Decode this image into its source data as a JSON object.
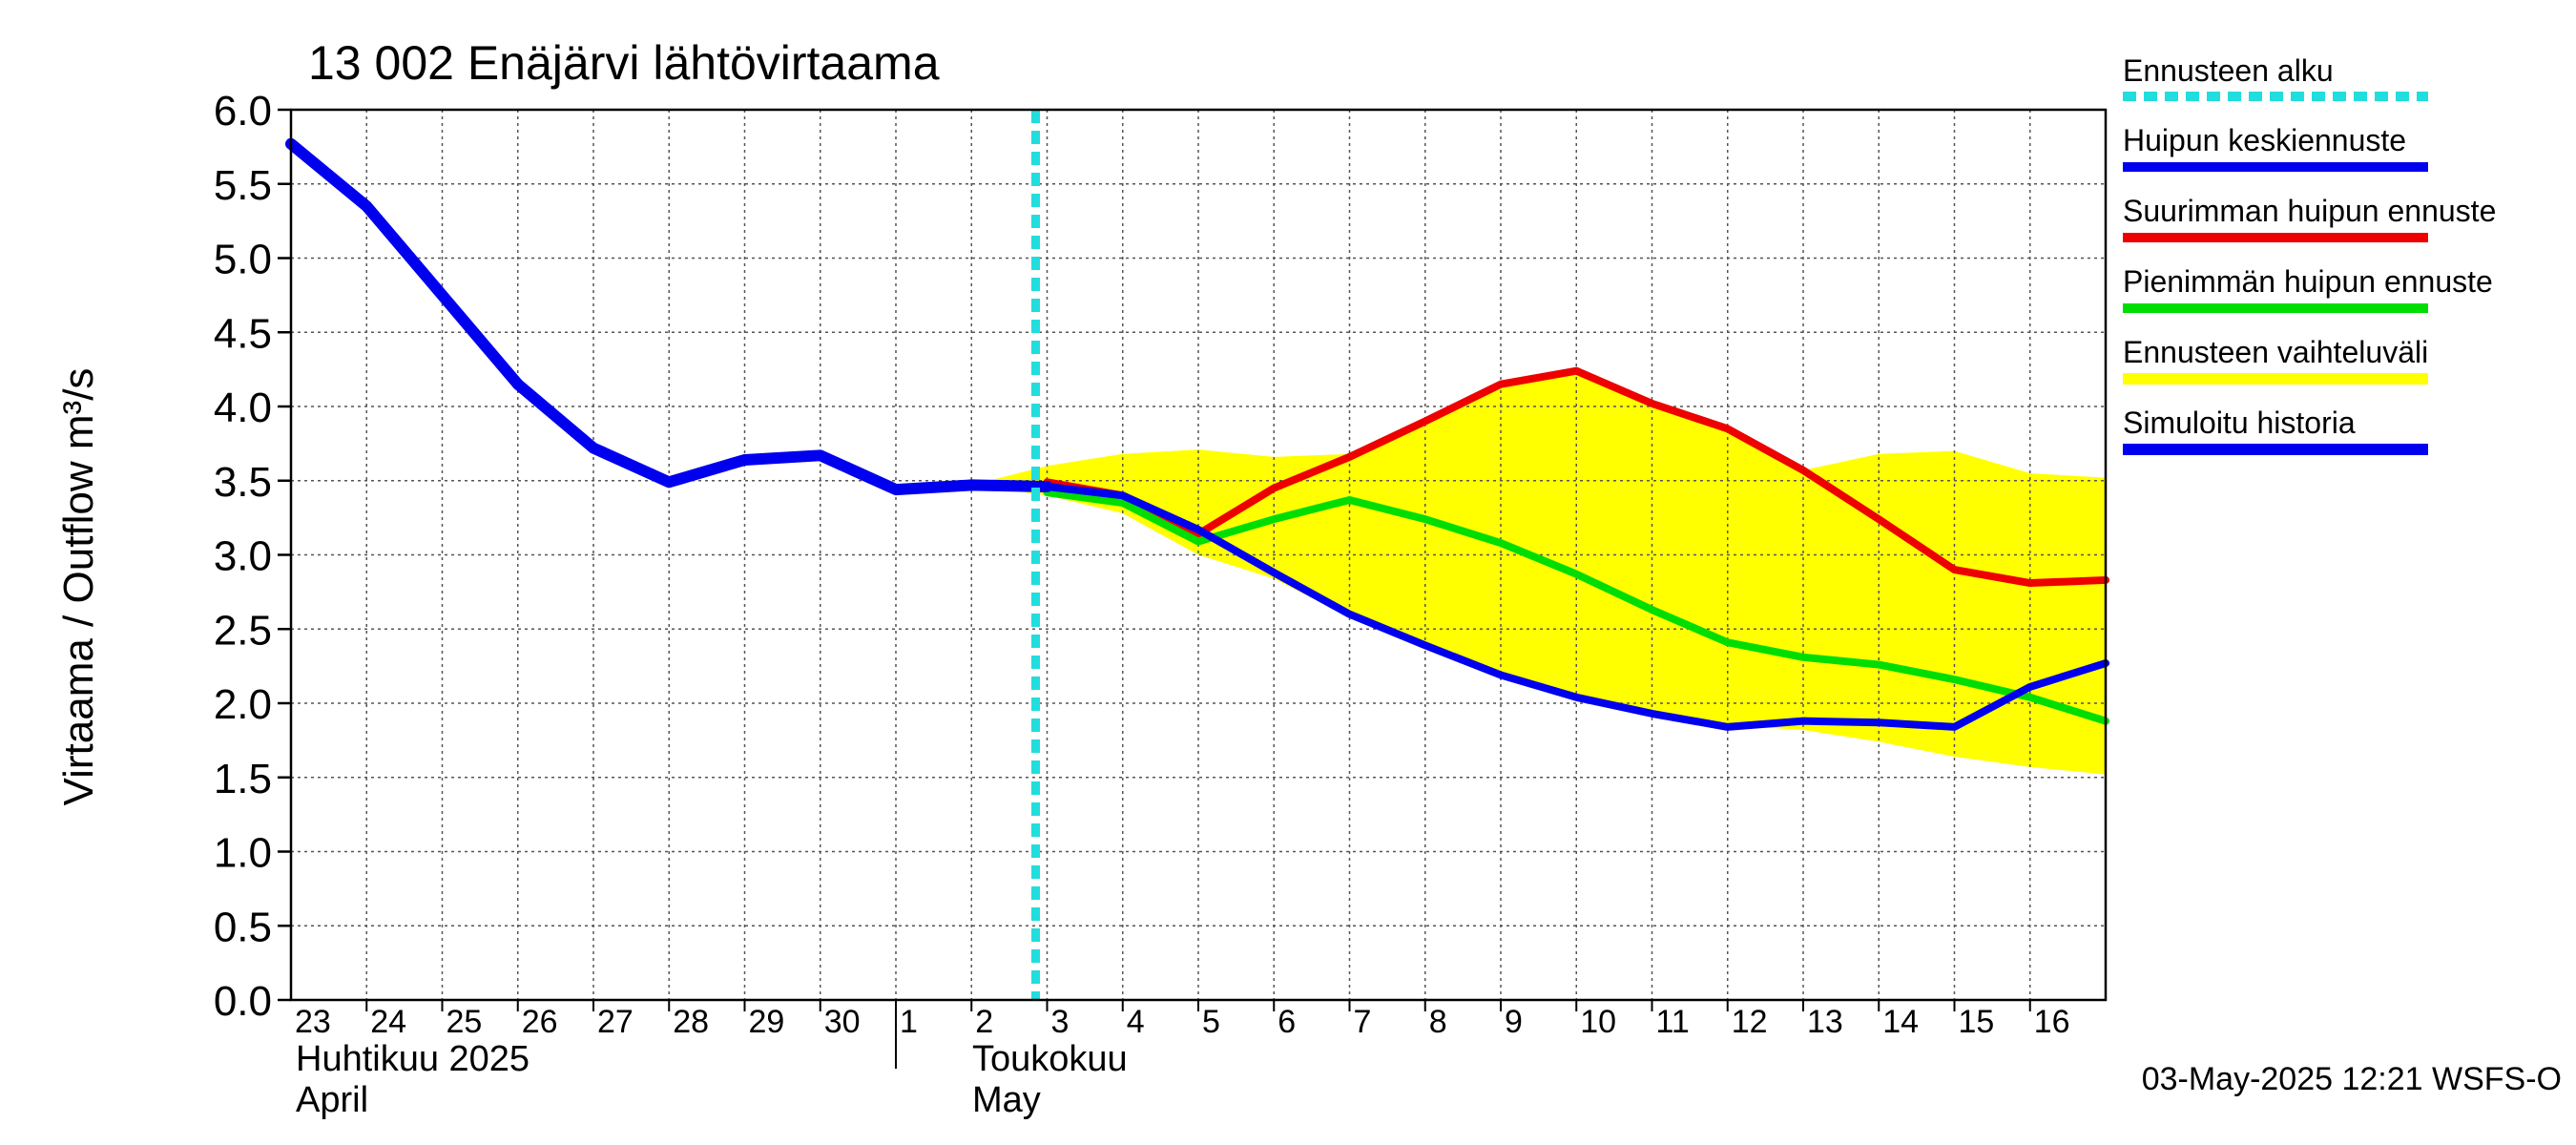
{
  "chart_data": {
    "type": "line",
    "title": "13 002 Enäjärvi lähtövirtaama",
    "ylabel": "Virtaama / Outflow    m³/s",
    "ylim": [
      0,
      6
    ],
    "yticks": [
      "0.0",
      "0.5",
      "1.0",
      "1.5",
      "2.0",
      "2.5",
      "3.0",
      "3.5",
      "4.0",
      "4.5",
      "5.0",
      "5.5",
      "6.0"
    ],
    "xlim": [
      "2025-04-23",
      "2025-05-17"
    ],
    "x_tick_labels": [
      "23",
      "24",
      "25",
      "26",
      "27",
      "28",
      "29",
      "30",
      "1",
      "2",
      "3",
      "4",
      "5",
      "6",
      "7",
      "8",
      "9",
      "10",
      "11",
      "12",
      "13",
      "14",
      "15",
      "16"
    ],
    "month_labels": {
      "april_fi": "Huhtikuu  2025",
      "april_en": "April",
      "may_fi": "Toukokuu",
      "may_en": "May"
    },
    "grid": true,
    "legend_position": "right",
    "legend": {
      "forecast_start": "Ennusteen alku",
      "mean_peak": "Huipun keskiennuste",
      "max_peak": "Suurimman huipun ennuste",
      "min_peak": "Pienimmän huipun ennuste",
      "range": "Ennusteen vaihteluväli",
      "history": "Simuloitu historia"
    },
    "colors": {
      "forecast_start": "#22dddd",
      "mean_peak": "#0000ee",
      "max_peak": "#ee0000",
      "min_peak": "#00dd00",
      "range": "#ffff00",
      "history": "#0000ee"
    },
    "forecast_start": "2025-05-03",
    "series": [
      {
        "name": "Simuloitu historia",
        "x": [
          "2025-04-23",
          "2025-04-24",
          "2025-04-25",
          "2025-04-26",
          "2025-04-27",
          "2025-04-28",
          "2025-04-29",
          "2025-04-30",
          "2025-05-01",
          "2025-05-02",
          "2025-05-03"
        ],
        "values": [
          5.77,
          5.35,
          4.75,
          4.15,
          3.72,
          3.49,
          3.64,
          3.67,
          3.44,
          3.47,
          3.46
        ]
      },
      {
        "name": "Huipun keskiennuste",
        "x": [
          "2025-05-03",
          "2025-05-04",
          "2025-05-05",
          "2025-05-06",
          "2025-05-07",
          "2025-05-08",
          "2025-05-09",
          "2025-05-10",
          "2025-05-11",
          "2025-05-12",
          "2025-05-13",
          "2025-05-14",
          "2025-05-15",
          "2025-05-16",
          "2025-05-17"
        ],
        "values": [
          3.46,
          3.4,
          3.17,
          2.88,
          2.6,
          2.39,
          2.19,
          2.04,
          1.93,
          1.84,
          1.88,
          1.87,
          1.84,
          2.11,
          2.27
        ]
      },
      {
        "name": "Suurimman huipun ennuste",
        "x": [
          "2025-05-03",
          "2025-05-04",
          "2025-05-05",
          "2025-05-06",
          "2025-05-07",
          "2025-05-08",
          "2025-05-09",
          "2025-05-10",
          "2025-05-11",
          "2025-05-12",
          "2025-05-13",
          "2025-05-14",
          "2025-05-15",
          "2025-05-16",
          "2025-05-17"
        ],
        "values": [
          3.49,
          3.4,
          3.14,
          3.45,
          3.66,
          3.9,
          4.15,
          4.24,
          4.02,
          3.85,
          3.57,
          3.24,
          2.9,
          2.81,
          2.83
        ]
      },
      {
        "name": "Pienimmän huipun ennuste",
        "x": [
          "2025-05-03",
          "2025-05-04",
          "2025-05-05",
          "2025-05-06",
          "2025-05-07",
          "2025-05-08",
          "2025-05-09",
          "2025-05-10",
          "2025-05-11",
          "2025-05-12",
          "2025-05-13",
          "2025-05-14",
          "2025-05-15",
          "2025-05-16",
          "2025-05-17"
        ],
        "values": [
          3.42,
          3.35,
          3.09,
          3.24,
          3.37,
          3.24,
          3.08,
          2.87,
          2.63,
          2.41,
          2.31,
          2.26,
          2.16,
          2.04,
          1.88
        ]
      },
      {
        "name": "Ennusteen vaihteluväli",
        "x": [
          "2025-05-02",
          "2025-05-03",
          "2025-05-04",
          "2025-05-05",
          "2025-05-06",
          "2025-05-07",
          "2025-05-08",
          "2025-05-09",
          "2025-05-10",
          "2025-05-11",
          "2025-05-12",
          "2025-05-13",
          "2025-05-14",
          "2025-05-15",
          "2025-05-16",
          "2025-05-17"
        ],
        "upper": [
          3.47,
          3.6,
          3.68,
          3.71,
          3.66,
          3.68,
          3.9,
          4.15,
          4.24,
          4.02,
          3.85,
          3.57,
          3.68,
          3.7,
          3.55,
          3.52
        ],
        "lower": [
          3.47,
          3.4,
          3.28,
          3.0,
          2.84,
          2.58,
          2.38,
          2.18,
          2.03,
          1.92,
          1.85,
          1.82,
          1.74,
          1.64,
          1.57,
          1.52
        ]
      }
    ]
  },
  "footer": {
    "timestamp": "03-May-2025 12:21 WSFS-O"
  }
}
